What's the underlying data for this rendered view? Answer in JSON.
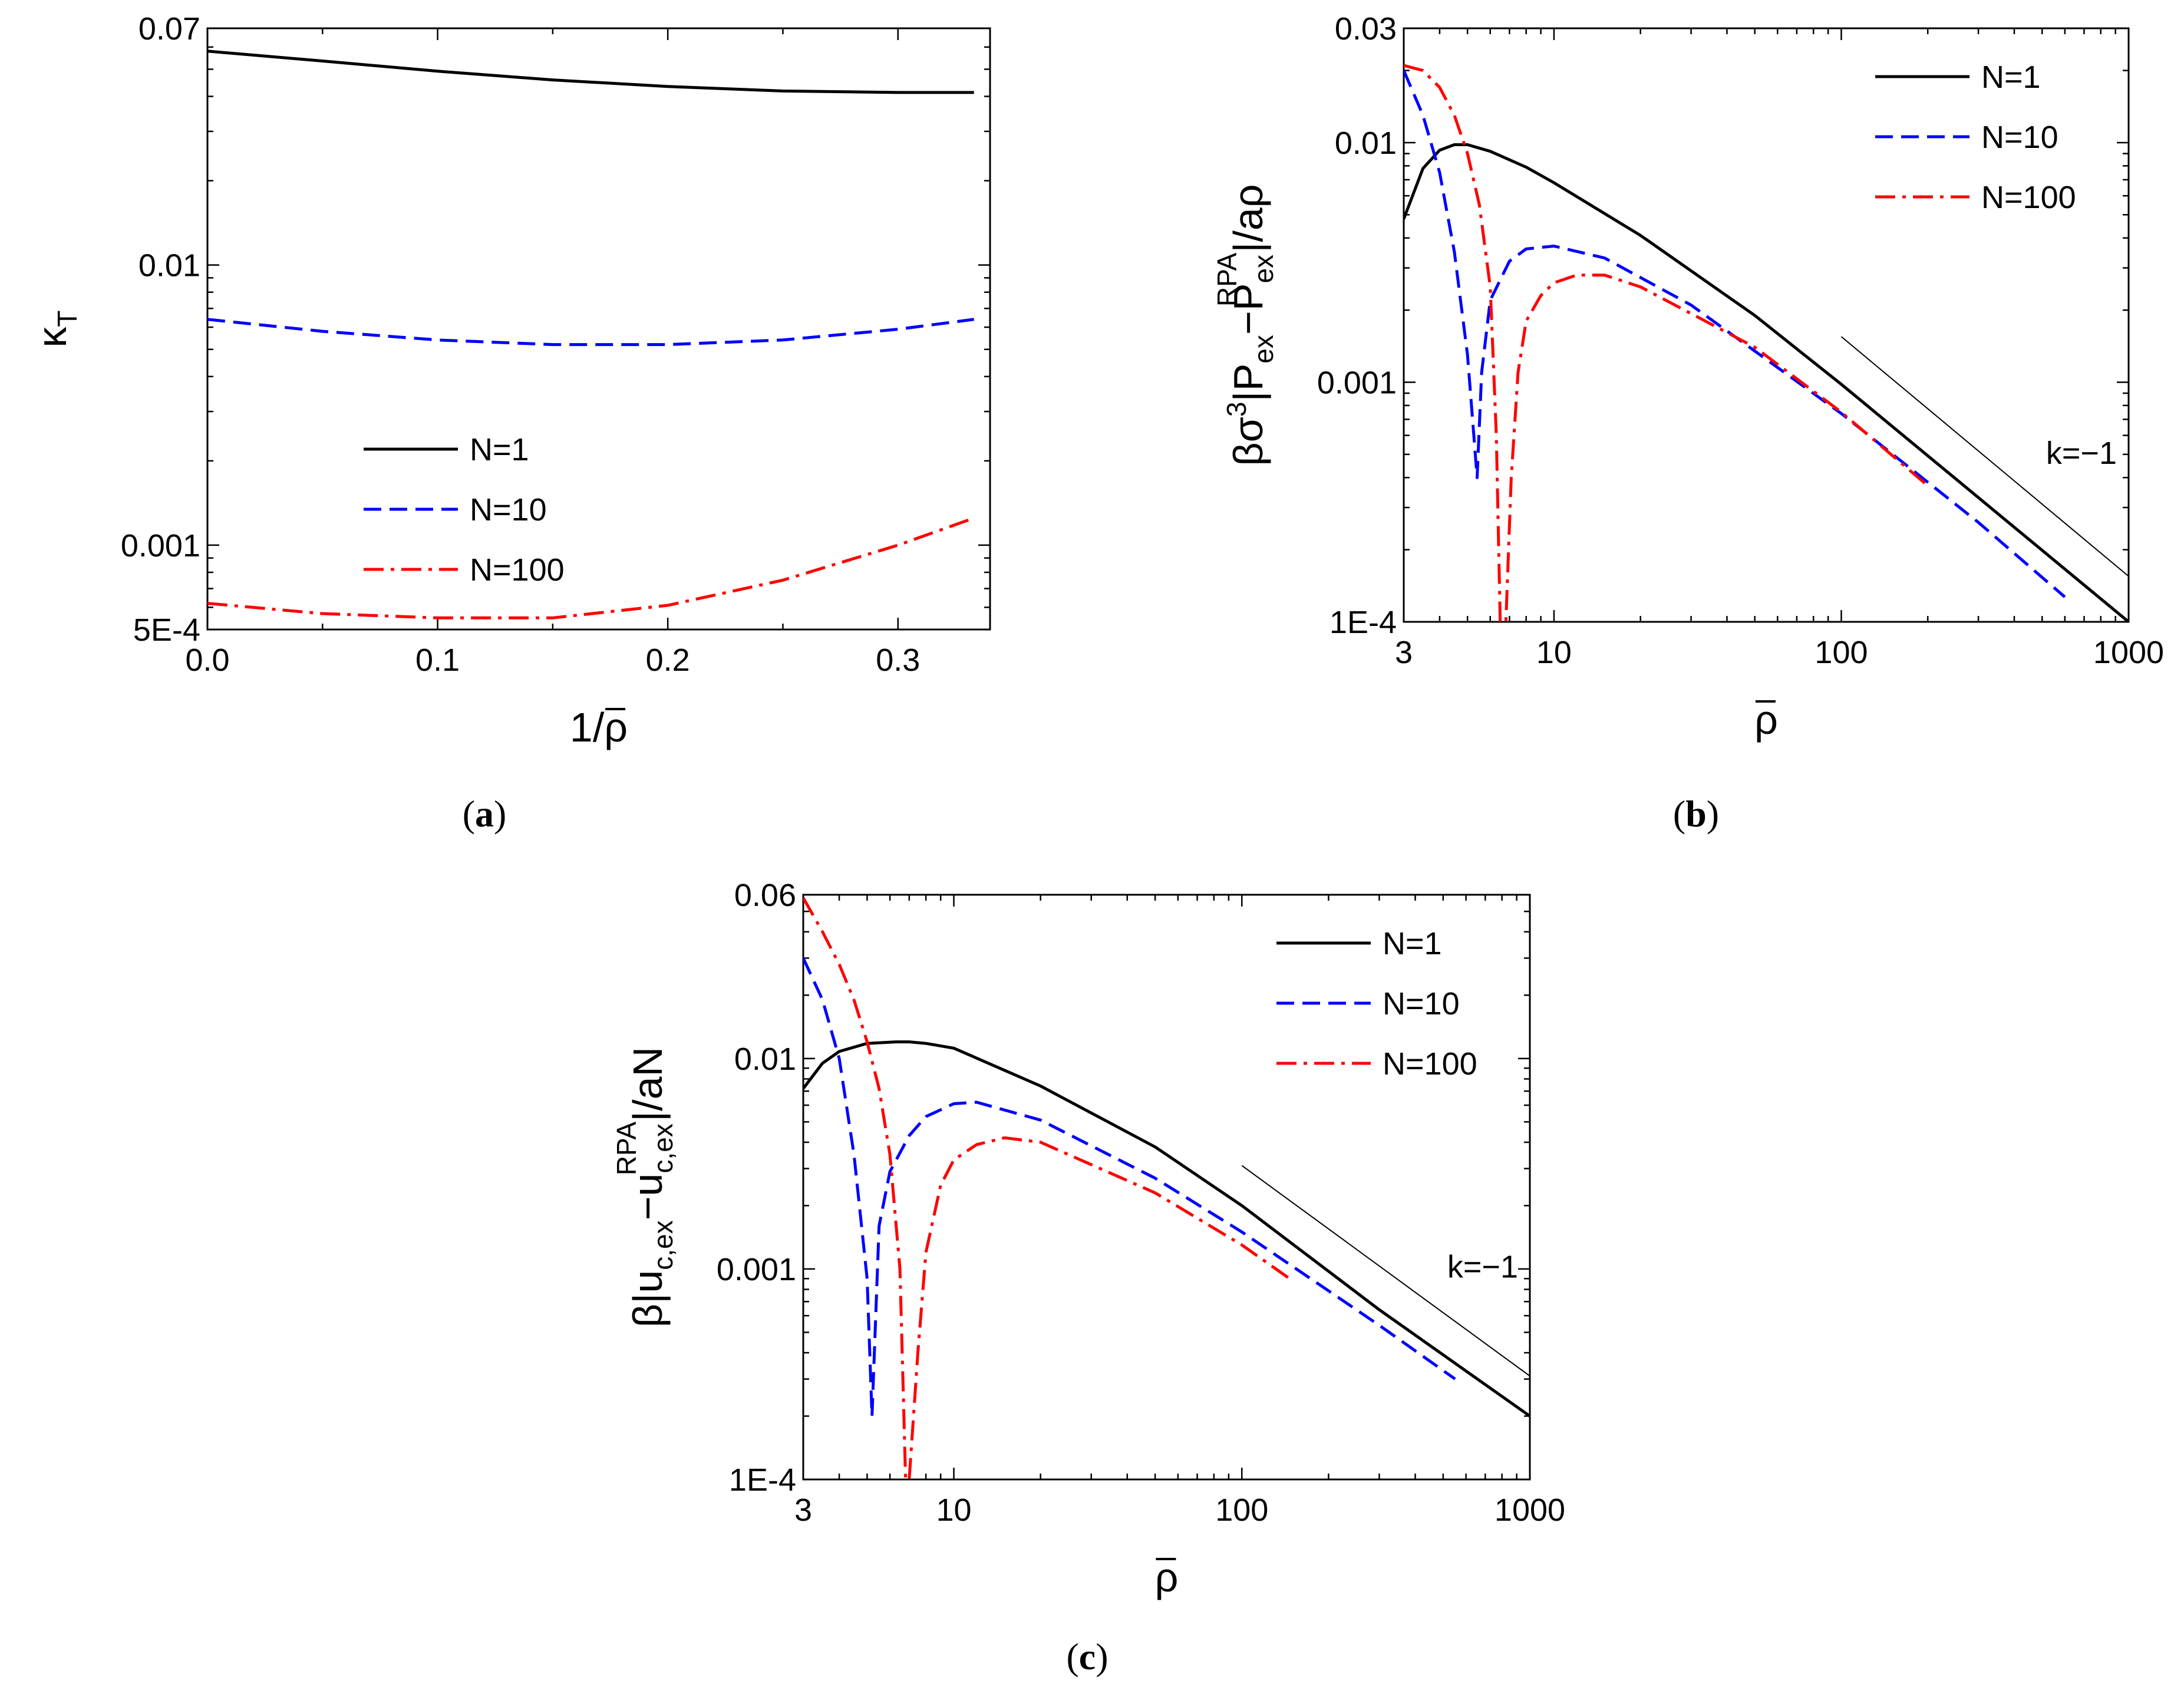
{
  "chart_data": [
    {
      "type": "line",
      "panel": "a",
      "panel_label": "a",
      "xlabel": "1/ρ",
      "ylabel": "κT",
      "xscale": "linear",
      "yscale": "log",
      "xlim": [
        0,
        0.34
      ],
      "ylim": [
        0.0005,
        0.07
      ],
      "xticks": [
        0.0,
        0.1,
        0.2,
        0.3
      ],
      "xtick_labels": [
        "0.0",
        "0.1",
        "0.2",
        "0.3"
      ],
      "yticks": [
        0.0005,
        0.001,
        0.01,
        0.07
      ],
      "ytick_labels": [
        "5E-4",
        "0.001",
        "0.01",
        "0.07"
      ],
      "legend_position": "lower-left",
      "series": [
        {
          "name": "N=1",
          "color": "#000000",
          "style": "solid",
          "x": [
            0,
            0.05,
            0.1,
            0.15,
            0.2,
            0.25,
            0.3,
            0.333
          ],
          "y": [
            0.058,
            0.0535,
            0.0492,
            0.0458,
            0.0434,
            0.0418,
            0.0413,
            0.0413
          ]
        },
        {
          "name": "N=10",
          "color": "#0000ff",
          "style": "dashed",
          "x": [
            0,
            0.05,
            0.1,
            0.15,
            0.2,
            0.25,
            0.3,
            0.333
          ],
          "y": [
            0.0064,
            0.0058,
            0.0054,
            0.0052,
            0.0052,
            0.0054,
            0.0059,
            0.0064
          ]
        },
        {
          "name": "N=100",
          "color": "#ff0000",
          "style": "dashdot",
          "x": [
            0,
            0.05,
            0.1,
            0.15,
            0.2,
            0.25,
            0.3,
            0.333
          ],
          "y": [
            0.00062,
            0.00057,
            0.00055,
            0.00055,
            0.00061,
            0.00075,
            0.001,
            0.00125
          ]
        }
      ]
    },
    {
      "type": "line",
      "panel": "b",
      "panel_label": "b",
      "xlabel": "ρ",
      "ylabel_parts": {
        "pre": "βσ",
        "sup3": "3",
        "mid": "|P",
        "sub1": "ex",
        "minus": "−P",
        "sub2": "ex",
        "sup2": "RPA",
        "post": "|/aρ"
      },
      "xscale": "log",
      "yscale": "log",
      "xlim": [
        3,
        1000
      ],
      "ylim": [
        0.0001,
        0.03
      ],
      "xticks": [
        3,
        10,
        100,
        1000
      ],
      "xtick_labels": [
        "3",
        "10",
        "100",
        "1000"
      ],
      "yticks": [
        0.0001,
        0.001,
        0.01,
        0.03
      ],
      "ytick_labels": [
        "1E-4",
        "0.001",
        "0.01",
        "0.03"
      ],
      "legend_position": "top-right",
      "annotation": "k=−1",
      "reference_line": {
        "slope": -1,
        "x": [
          100,
          1000
        ],
        "y": [
          0.00155,
          0.000155
        ]
      },
      "series": [
        {
          "name": "N=1",
          "color": "#000000",
          "style": "solid",
          "x": [
            3,
            3.5,
            4,
            4.5,
            5,
            6,
            8,
            10,
            20,
            50,
            100,
            300,
            1000
          ],
          "y": [
            0.0048,
            0.0078,
            0.0093,
            0.0098,
            0.0098,
            0.0092,
            0.0079,
            0.0068,
            0.0041,
            0.0019,
            0.00098,
            0.00033,
            0.0001
          ]
        },
        {
          "name": "N=10",
          "color": "#0000ff",
          "style": "dashed",
          "x": [
            3,
            3.5,
            4,
            4.5,
            5,
            5.4,
            5.6,
            6,
            7,
            8,
            10,
            15,
            30,
            100,
            300,
            600
          ],
          "y": [
            0.02,
            0.013,
            0.0075,
            0.0035,
            0.0013,
            0.0004,
            0.0011,
            0.0022,
            0.0032,
            0.0036,
            0.0037,
            0.0033,
            0.0021,
            0.00074,
            0.00026,
            0.000127
          ]
        },
        {
          "name": "N=100",
          "color": "#ff0000",
          "style": "dashdot",
          "x": [
            3,
            3.5,
            4,
            4.5,
            5,
            5.5,
            6,
            6.3,
            6.5,
            6.8,
            7.1,
            7.5,
            8,
            9,
            10,
            12,
            15,
            20,
            50,
            100,
            200
          ],
          "y": [
            0.021,
            0.02,
            0.017,
            0.013,
            0.009,
            0.0055,
            0.0025,
            0.0006,
            0.0001,
            0.0001,
            0.0004,
            0.0011,
            0.0018,
            0.0023,
            0.0026,
            0.0028,
            0.0028,
            0.0025,
            0.0014,
            0.00075,
            0.00037
          ]
        }
      ]
    },
    {
      "type": "line",
      "panel": "c",
      "panel_label": "c",
      "xlabel": "ρ",
      "ylabel_parts": {
        "pre": "β|u",
        "sub1": "c,ex",
        "minus": "−u",
        "sub2": "c,ex",
        "sup2": "RPA",
        "post": "|/aN"
      },
      "xscale": "log",
      "yscale": "log",
      "xlim": [
        3,
        1000
      ],
      "ylim": [
        0.0001,
        0.06
      ],
      "xticks": [
        3,
        10,
        100,
        1000
      ],
      "xtick_labels": [
        "3",
        "10",
        "100",
        "1000"
      ],
      "yticks": [
        0.0001,
        0.001,
        0.01,
        0.06
      ],
      "ytick_labels": [
        "1E-4",
        "0.001",
        "0.01",
        "0.06"
      ],
      "legend_position": "top-right",
      "annotation": "k=−1",
      "reference_line": {
        "slope": -1,
        "x": [
          100,
          1000
        ],
        "y": [
          0.0031,
          0.00031
        ]
      },
      "series": [
        {
          "name": "N=1",
          "color": "#000000",
          "style": "solid",
          "x": [
            3,
            3.5,
            4,
            5,
            6.3,
            7,
            8,
            10,
            20,
            50,
            100,
            300,
            1000
          ],
          "y": [
            0.0072,
            0.0095,
            0.0108,
            0.0118,
            0.012,
            0.012,
            0.0118,
            0.0112,
            0.0074,
            0.0038,
            0.002,
            0.00064,
            0.0002
          ]
        },
        {
          "name": "N=10",
          "color": "#0000ff",
          "style": "dashed",
          "x": [
            3,
            3.5,
            4,
            4.5,
            5,
            5.2,
            5.5,
            6,
            7,
            8,
            10,
            12,
            20,
            50,
            100,
            300,
            550
          ],
          "y": [
            0.03,
            0.019,
            0.01,
            0.0035,
            0.0009,
            0.0002,
            0.0016,
            0.0029,
            0.0043,
            0.0053,
            0.0061,
            0.0062,
            0.0051,
            0.0027,
            0.0015,
            0.00054,
            0.0003
          ]
        },
        {
          "name": "N=100",
          "color": "#ff0000",
          "style": "dashdot",
          "x": [
            3,
            3.5,
            4,
            4.5,
            5,
            5.5,
            6,
            6.5,
            6.8,
            7,
            7.5,
            8,
            9,
            10,
            12,
            15,
            20,
            50,
            100,
            150
          ],
          "y": [
            0.058,
            0.04,
            0.028,
            0.019,
            0.012,
            0.0072,
            0.0035,
            0.001,
            0.0001,
            0.0001,
            0.0004,
            0.0012,
            0.0025,
            0.0033,
            0.0039,
            0.0042,
            0.004,
            0.0023,
            0.0013,
            0.00088
          ]
        }
      ]
    }
  ]
}
